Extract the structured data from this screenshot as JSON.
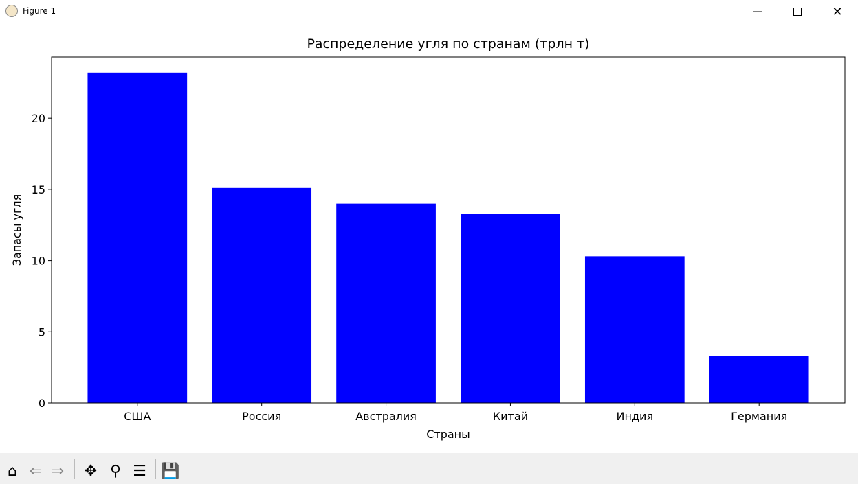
{
  "window": {
    "title": "Figure 1",
    "minimize_icon": "minimize-icon",
    "maximize_icon": "maximize-icon",
    "close_icon": "close-icon"
  },
  "toolbar": {
    "items": [
      "home-icon",
      "back-icon",
      "forward-icon",
      "pan-icon",
      "zoom-icon",
      "configure-icon",
      "save-icon"
    ]
  },
  "chart_data": {
    "type": "bar",
    "title": "Распределение угля по странам (трлн т)",
    "xlabel": "Страны",
    "ylabel": "Запасы угля",
    "categories": [
      "США",
      "Россия",
      "Австралия",
      "Китай",
      "Индия",
      "Германия"
    ],
    "values": [
      23.2,
      15.1,
      14.0,
      13.3,
      10.3,
      3.3
    ],
    "ylim": [
      0,
      24.3
    ],
    "yticks": [
      0,
      5,
      10,
      15,
      20
    ],
    "bar_color": "#0000ff",
    "grid": false
  }
}
